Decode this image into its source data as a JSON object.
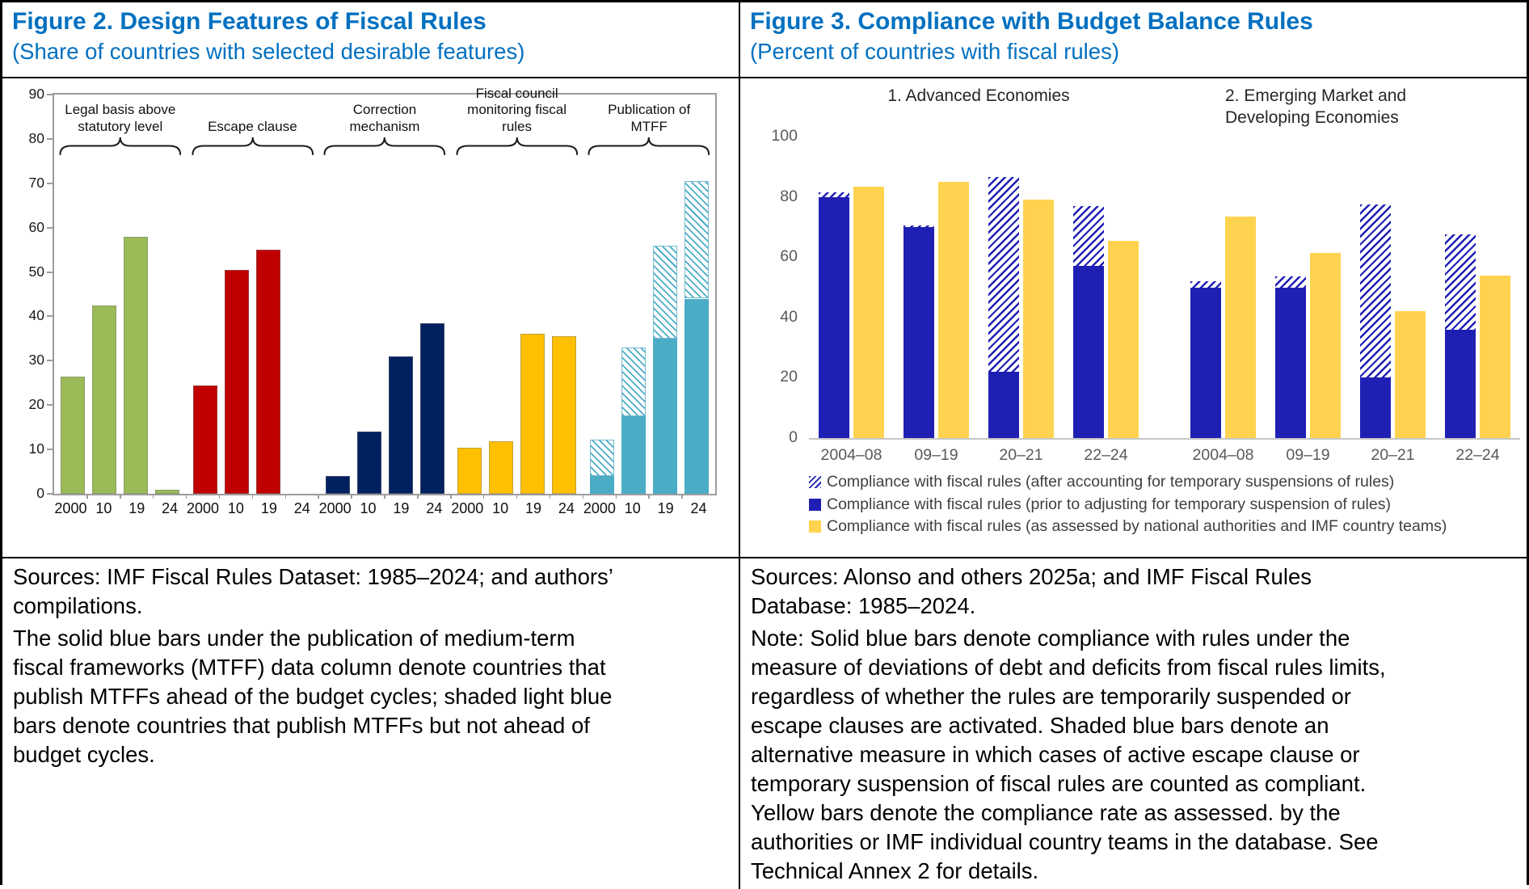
{
  "figure2": {
    "title": "Figure 2. Design Features of Fiscal Rules",
    "subtitle": "(Share of countries with selected desirable features)",
    "source_note": "Sources: IMF Fiscal Rules Dataset: 1985–2024; and authors’\ncompilations.",
    "note": "The solid blue bars under the publication of medium-term\nfiscal frameworks (MTFF) data column denote countries that\npublish MTFFs ahead of the budget cycles; shaded light blue\nbars denote countries that publish MTFFs but not ahead of\nbudget cycles."
  },
  "figure3": {
    "title": "Figure 3. Compliance with Budget Balance Rules",
    "subtitle": "(Percent of countries with fiscal rules)",
    "source_note": "Sources: Alonso and others 2025a; and IMF Fiscal Rules\nDatabase: 1985–2024.",
    "note": "Note: Solid blue bars denote compliance with rules under the\nmeasure of deviations of debt and deficits from fiscal rules limits,\nregardless of whether the rules are temporarily suspended or\nescape clauses are activated. Shaded blue bars denote an\nalternative measure in which cases of active escape clause or\ntemporary suspension of fiscal rules are counted as compliant.\nYellow bars denote the compliance rate as assessed. by the\nauthorities or IMF individual country teams in the database. See\nTechnical Annex 2 for details."
  },
  "colors": {
    "title_blue": "#0070C0",
    "green": "#9BBB59",
    "red": "#C00000",
    "navy": "#002060",
    "yellow": "#FFC000",
    "light_blue": "#4BACC6",
    "navy_right": "#1F1FB4",
    "yellow_right": "#FFD34F"
  },
  "chart_data": [
    {
      "type": "bar",
      "title": "Figure 2. Design Features of Fiscal Rules",
      "ylim": [
        0,
        90
      ],
      "ytick_step": 10,
      "grid": false,
      "legend_position": "none",
      "categories": [
        "2000",
        "10",
        "19",
        "24"
      ],
      "groups": [
        {
          "label": "Legal basis above statutory level",
          "label_lines": [
            "Legal basis above",
            "statutory level"
          ],
          "color": "#9BBB59",
          "values": [
            26.5,
            42.5,
            58,
            1
          ]
        },
        {
          "label": "Escape clause",
          "label_lines": [
            "Escape clause"
          ],
          "color": "#C00000",
          "values": [
            24.5,
            50.5,
            55,
            0
          ]
        },
        {
          "label": "Correction mechanism",
          "label_lines": [
            "Correction",
            "mechanism"
          ],
          "color": "#002060",
          "values": [
            4,
            14,
            31,
            38.5
          ]
        },
        {
          "label": "Fiscal council monitoring fiscal rules",
          "label_lines": [
            "Fiscal council",
            "monitoring fiscal rules"
          ],
          "color": "#FFC000",
          "values": [
            10.3,
            11.8,
            36,
            35.5
          ]
        },
        {
          "label": "Publication of MTFF",
          "label_lines": [
            "Publication of",
            "MTFF"
          ],
          "color": "#4BACC6",
          "hatched": true,
          "values_solid": [
            4,
            17.5,
            35,
            44
          ],
          "values_total": [
            12.3,
            33,
            56,
            70.5
          ]
        }
      ]
    },
    {
      "type": "bar",
      "title": "Figure 3. Compliance with Budget Balance Rules",
      "ylim": [
        0,
        100
      ],
      "ytick_step": 20,
      "grid": false,
      "legend_position": "bottom",
      "categories": [
        "2004–08",
        "09–19",
        "20–21",
        "22–24"
      ],
      "panels": [
        {
          "title": "1. Advanced Economies",
          "title_lines": [
            "1. Advanced Economies"
          ],
          "series": [
            {
              "name": "Compliance with fiscal rules (after accounting for temporary suspensions of rules)",
              "values": [
                81.5,
                70.5,
                86.5,
                77
              ]
            },
            {
              "name": "Compliance with fiscal rules (prior to adjusting for temporary suspension of rules)",
              "values": [
                80,
                70,
                22,
                57
              ]
            },
            {
              "name": "Compliance with fiscal rules (as assessed by national authorities and IMF country teams)",
              "values": [
                83.5,
                85,
                79,
                65.5
              ]
            }
          ]
        },
        {
          "title": "2. Emerging Market and Developing Economies",
          "title_lines": [
            "2. Emerging Market and",
            "Developing Economies"
          ],
          "series": [
            {
              "name": "Compliance with fiscal rules (after accounting for temporary suspensions of rules)",
              "values": [
                52,
                53.5,
                77.5,
                67.5
              ]
            },
            {
              "name": "Compliance with fiscal rules (prior to adjusting for temporary suspension of rules)",
              "values": [
                50,
                50,
                20,
                36
              ]
            },
            {
              "name": "Compliance with fiscal rules (as assessed by national authorities and IMF country teams)",
              "values": [
                73.5,
                61.5,
                42,
                54
              ]
            }
          ]
        }
      ],
      "legend": [
        {
          "swatch": "hatched-navy",
          "label": "Compliance with fiscal rules (after accounting for temporary suspensions of rules)"
        },
        {
          "swatch": "solid-navy",
          "label": "Compliance with fiscal rules (prior to adjusting for temporary suspension of rules)"
        },
        {
          "swatch": "solid-yellow",
          "label": "Compliance with fiscal rules (as assessed by national authorities and IMF country teams)"
        }
      ]
    }
  ]
}
